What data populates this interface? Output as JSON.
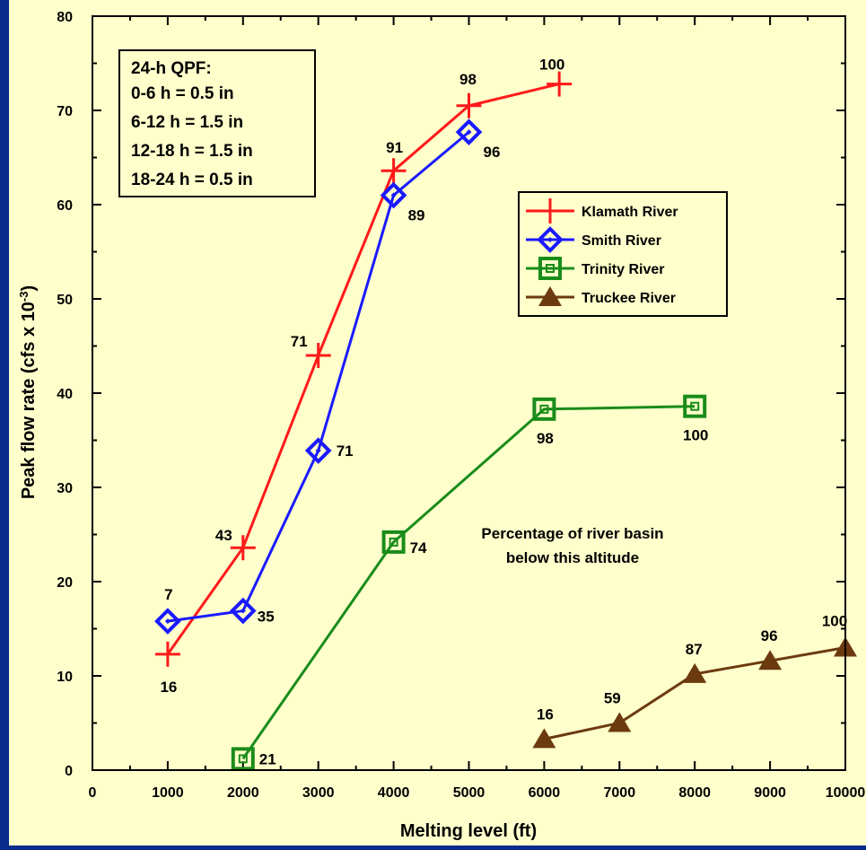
{
  "chart_data": {
    "type": "line",
    "xlabel": "Melting level (ft)",
    "ylabel": "Peak flow rate (cfs x 10",
    "ylabel_sup": "-3",
    "ylabel_end": ")",
    "xlim": [
      0,
      10000
    ],
    "ylim": [
      0,
      80
    ],
    "x_ticks": [
      0,
      1000,
      2000,
      3000,
      4000,
      5000,
      6000,
      7000,
      8000,
      9000,
      10000
    ],
    "x_tick_labels": [
      "0",
      "1000",
      "2000",
      "3000",
      "4000",
      "5000",
      "6000",
      "7000",
      "8000",
      "9000",
      "10000"
    ],
    "y_ticks": [
      0,
      10,
      20,
      30,
      40,
      50,
      60,
      70,
      80
    ],
    "y_tick_labels": [
      "0",
      "10",
      "20",
      "30",
      "40",
      "50",
      "60",
      "70",
      "80"
    ],
    "grid": false,
    "legend_position": "right",
    "qpf_box": {
      "lines": [
        "24-h QPF:",
        "0-6 h = 0.5 in",
        "6-12 h  = 1.5 in",
        "12-18 h = 1.5 in",
        "18-24 h = 0.5 in"
      ]
    },
    "annotation": {
      "lines": [
        "Percentage of river basin",
        "below this altitude"
      ]
    },
    "series": [
      {
        "name": "Klamath River",
        "color": "#ff1a1a",
        "marker": "plus",
        "x": [
          1000,
          2000,
          3000,
          4000,
          5000,
          6200
        ],
        "y": [
          12.3,
          23.6,
          44.0,
          63.6,
          70.5,
          72.8
        ],
        "labels": [
          "16",
          "43",
          "71",
          "91",
          "98",
          "100"
        ]
      },
      {
        "name": "Smith River",
        "color": "#1a1aff",
        "marker": "diamond",
        "x": [
          1000,
          2000,
          3000,
          4000,
          5000
        ],
        "y": [
          15.8,
          16.9,
          33.9,
          61.0,
          67.7
        ],
        "labels": [
          "7",
          "35",
          "71",
          "89",
          "96"
        ]
      },
      {
        "name": "Trinity River",
        "color": "#1a8c1a",
        "marker": "square",
        "x": [
          2000,
          4000,
          6000,
          8000
        ],
        "y": [
          1.2,
          24.2,
          38.3,
          38.6
        ],
        "labels": [
          "21",
          "74",
          "98",
          "100"
        ]
      },
      {
        "name": "Truckee River",
        "color": "#6b3a0e",
        "marker": "triangle",
        "x": [
          6000,
          7000,
          8000,
          9000,
          10000
        ],
        "y": [
          3.3,
          5.0,
          10.2,
          11.6,
          13.0
        ],
        "labels": [
          "16",
          "59",
          "87",
          "96",
          "100"
        ]
      }
    ]
  }
}
